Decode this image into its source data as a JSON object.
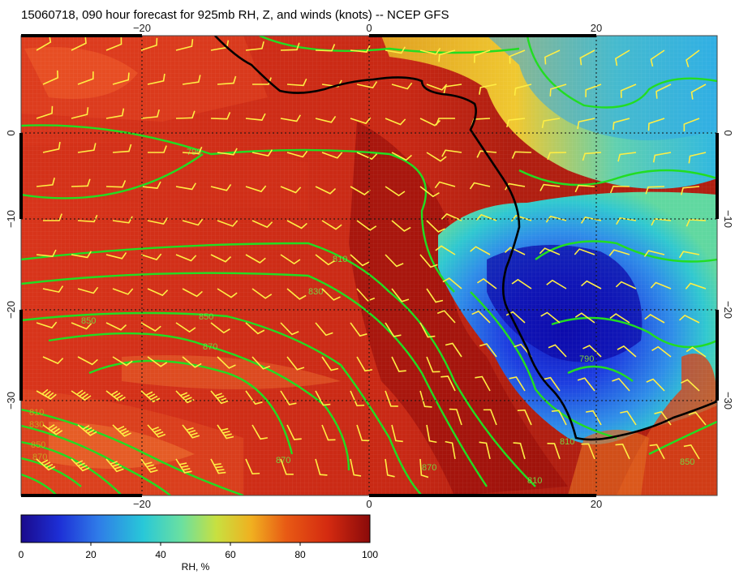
{
  "title": "15060718, 090 hour forecast for 925mb RH, Z, and winds (knots) -- NCEP GFS",
  "map": {
    "projection": "cylindrical",
    "lon_range": [
      -30,
      31
    ],
    "lat_range": [
      10,
      -40
    ],
    "graticule_interval": 10,
    "lon_ticks": [
      {
        "value": -20,
        "label": "−20"
      },
      {
        "value": 0,
        "label": "0"
      },
      {
        "value": 20,
        "label": "20"
      }
    ],
    "lat_ticks": [
      {
        "value": 0,
        "label": "0"
      },
      {
        "value": -10,
        "label": "−10"
      },
      {
        "value": -20,
        "label": "−20"
      },
      {
        "value": -30,
        "label": "−30"
      }
    ],
    "field": "925mb relative humidity (%)",
    "contour_labels": [
      "790",
      "810",
      "830",
      "850",
      "870",
      "850",
      "870",
      "810",
      "830",
      "850",
      "870",
      "870",
      "810",
      "790",
      "810",
      "850"
    ],
    "contour_color": "#22dd22",
    "barb_color": "#ffee44",
    "coastline_color": "#000000"
  },
  "colorbar": {
    "min": 0,
    "max": 100,
    "tick_labels": [
      "0",
      "20",
      "40",
      "60",
      "80",
      "100"
    ],
    "label": "RH, %",
    "stops": [
      "#1a0a8c",
      "#1d2fd6",
      "#2f7be8",
      "#28c8d8",
      "#6be0a0",
      "#c8e040",
      "#f0b020",
      "#e85a14",
      "#d42a10",
      "#8a0a0a"
    ]
  }
}
